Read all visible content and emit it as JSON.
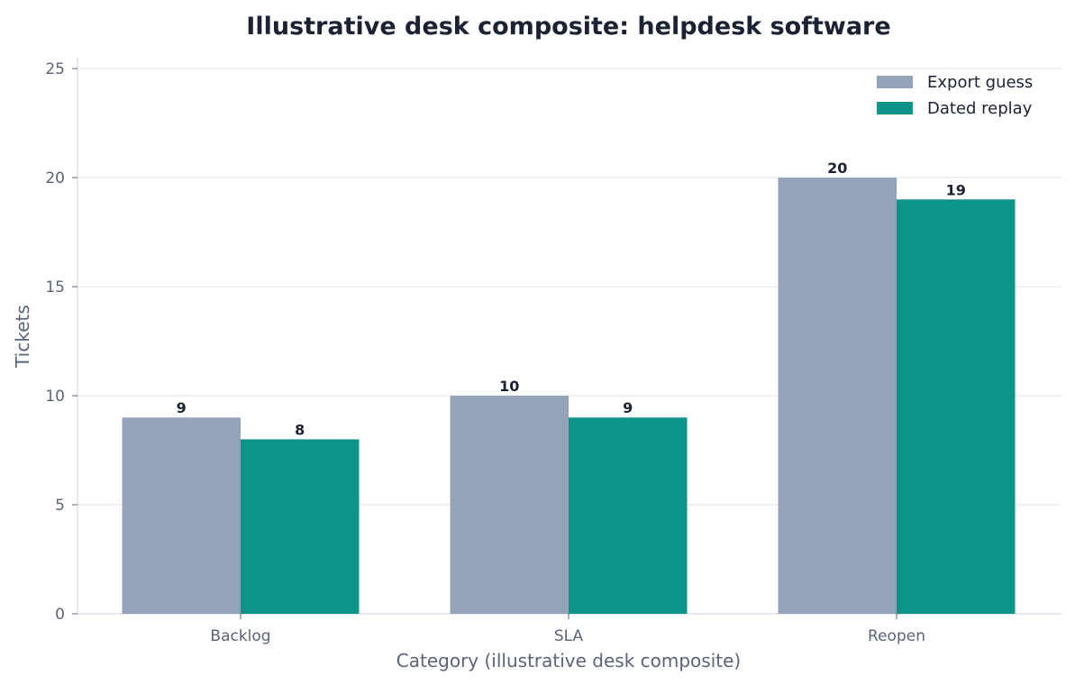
{
  "chart_data": {
    "type": "bar",
    "title": "Illustrative desk composite: helpdesk software",
    "xlabel": "Category (illustrative desk composite)",
    "ylabel": "Tickets",
    "categories": [
      "Backlog",
      "SLA",
      "Reopen"
    ],
    "series": [
      {
        "name": "Export guess",
        "values": [
          9,
          10,
          20
        ],
        "color": "#94a3b8"
      },
      {
        "name": "Dated replay",
        "values": [
          8,
          9,
          19
        ],
        "color": "#0d9488"
      }
    ],
    "ylim": [
      0,
      25.5
    ],
    "yticks": [
      0,
      5,
      10,
      15,
      20,
      25
    ],
    "grid": true,
    "legend": "top-right"
  }
}
